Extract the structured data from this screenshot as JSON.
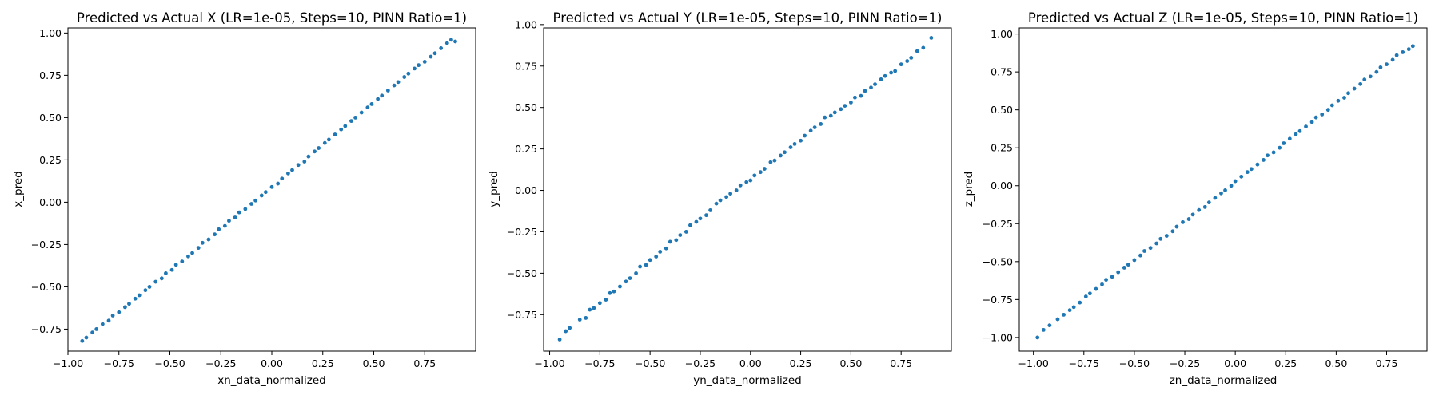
{
  "figure": {
    "background": "#ffffff",
    "point_color": "#1f77b4"
  },
  "chart_data": [
    {
      "type": "scatter",
      "title": "Predicted vs Actual X (LR=1e-05, Steps=10, PINN Ratio=1)",
      "xlabel": "xn_data_normalized",
      "ylabel": "x_pred",
      "xlim": [
        -1.0,
        1.0
      ],
      "ylim": [
        -0.88,
        1.03
      ],
      "xticks": [
        -1.0,
        -0.75,
        -0.5,
        -0.25,
        0.0,
        0.25,
        0.5,
        0.75
      ],
      "xtick_labels": [
        "−1.00",
        "−0.75",
        "−0.50",
        "−0.25",
        "0.00",
        "0.25",
        "0.50",
        "0.75"
      ],
      "yticks": [
        -0.75,
        -0.5,
        -0.25,
        0.0,
        0.25,
        0.5,
        0.75,
        1.0
      ],
      "ytick_labels": [
        "−0.75",
        "−0.50",
        "−0.25",
        "0.00",
        "0.25",
        "0.50",
        "0.75",
        "1.00"
      ],
      "grid": false,
      "color": "#1f77b4",
      "x": [
        -0.93,
        -0.91,
        -0.88,
        -0.86,
        -0.83,
        -0.8,
        -0.78,
        -0.75,
        -0.72,
        -0.7,
        -0.67,
        -0.65,
        -0.62,
        -0.6,
        -0.57,
        -0.54,
        -0.52,
        -0.49,
        -0.47,
        -0.44,
        -0.41,
        -0.39,
        -0.36,
        -0.34,
        -0.31,
        -0.28,
        -0.26,
        -0.23,
        -0.21,
        -0.18,
        -0.16,
        -0.13,
        -0.1,
        -0.08,
        -0.05,
        -0.03,
        0.0,
        0.03,
        0.05,
        0.08,
        0.1,
        0.13,
        0.16,
        0.18,
        0.21,
        0.23,
        0.26,
        0.28,
        0.31,
        0.34,
        0.36,
        0.39,
        0.41,
        0.44,
        0.47,
        0.49,
        0.52,
        0.54,
        0.57,
        0.6,
        0.62,
        0.65,
        0.67,
        0.7,
        0.72,
        0.75,
        0.78,
        0.8,
        0.83,
        0.86,
        0.88,
        0.9
      ],
      "y": [
        -0.82,
        -0.8,
        -0.77,
        -0.75,
        -0.72,
        -0.7,
        -0.67,
        -0.65,
        -0.62,
        -0.6,
        -0.57,
        -0.55,
        -0.52,
        -0.5,
        -0.47,
        -0.45,
        -0.42,
        -0.4,
        -0.37,
        -0.35,
        -0.32,
        -0.3,
        -0.27,
        -0.24,
        -0.22,
        -0.19,
        -0.16,
        -0.14,
        -0.11,
        -0.09,
        -0.06,
        -0.04,
        -0.01,
        0.01,
        0.04,
        0.06,
        0.09,
        0.11,
        0.14,
        0.17,
        0.19,
        0.22,
        0.24,
        0.27,
        0.3,
        0.32,
        0.35,
        0.37,
        0.4,
        0.43,
        0.45,
        0.48,
        0.5,
        0.53,
        0.56,
        0.58,
        0.61,
        0.63,
        0.66,
        0.69,
        0.71,
        0.74,
        0.76,
        0.79,
        0.81,
        0.83,
        0.86,
        0.88,
        0.91,
        0.94,
        0.96,
        0.95
      ]
    },
    {
      "type": "scatter",
      "title": "Predicted vs Actual Y (LR=1e-05, Steps=10, PINN Ratio=1)",
      "xlabel": "yn_data_normalized",
      "ylabel": "y_pred",
      "xlim": [
        -1.03,
        1.0
      ],
      "ylim": [
        -0.97,
        0.98
      ],
      "xticks": [
        -1.0,
        -0.75,
        -0.5,
        -0.25,
        0.0,
        0.25,
        0.5,
        0.75
      ],
      "xtick_labels": [
        "−1.00",
        "−0.75",
        "−0.50",
        "−0.25",
        "0.00",
        "0.25",
        "0.50",
        "0.75"
      ],
      "yticks": [
        -0.75,
        -0.5,
        -0.25,
        0.0,
        0.25,
        0.5,
        0.75,
        1.0
      ],
      "ytick_labels": [
        "−0.75",
        "−0.50",
        "−0.25",
        "0.00",
        "0.25",
        "0.50",
        "0.75",
        "1.00"
      ],
      "grid": false,
      "color": "#1f77b4",
      "x": [
        -0.95,
        -0.92,
        -0.9,
        -0.85,
        -0.82,
        -0.8,
        -0.78,
        -0.75,
        -0.72,
        -0.7,
        -0.68,
        -0.65,
        -0.62,
        -0.6,
        -0.57,
        -0.55,
        -0.52,
        -0.5,
        -0.47,
        -0.45,
        -0.42,
        -0.4,
        -0.37,
        -0.35,
        -0.32,
        -0.3,
        -0.27,
        -0.25,
        -0.22,
        -0.2,
        -0.17,
        -0.15,
        -0.12,
        -0.1,
        -0.07,
        -0.05,
        -0.02,
        0.0,
        0.02,
        0.05,
        0.07,
        0.1,
        0.12,
        0.15,
        0.17,
        0.2,
        0.22,
        0.25,
        0.27,
        0.3,
        0.32,
        0.35,
        0.37,
        0.4,
        0.42,
        0.45,
        0.47,
        0.5,
        0.52,
        0.55,
        0.57,
        0.6,
        0.62,
        0.65,
        0.67,
        0.7,
        0.72,
        0.75,
        0.78,
        0.8,
        0.83,
        0.86,
        0.9
      ],
      "y": [
        -0.9,
        -0.85,
        -0.83,
        -0.78,
        -0.77,
        -0.72,
        -0.71,
        -0.68,
        -0.66,
        -0.62,
        -0.61,
        -0.58,
        -0.55,
        -0.53,
        -0.5,
        -0.46,
        -0.45,
        -0.42,
        -0.4,
        -0.37,
        -0.35,
        -0.31,
        -0.3,
        -0.27,
        -0.25,
        -0.21,
        -0.19,
        -0.17,
        -0.15,
        -0.12,
        -0.08,
        -0.06,
        -0.04,
        -0.02,
        0.0,
        0.03,
        0.05,
        0.06,
        0.09,
        0.11,
        0.13,
        0.17,
        0.18,
        0.21,
        0.23,
        0.26,
        0.28,
        0.3,
        0.33,
        0.36,
        0.38,
        0.4,
        0.44,
        0.45,
        0.47,
        0.49,
        0.51,
        0.53,
        0.56,
        0.57,
        0.6,
        0.62,
        0.64,
        0.67,
        0.69,
        0.71,
        0.72,
        0.76,
        0.78,
        0.8,
        0.84,
        0.86,
        0.92
      ]
    },
    {
      "type": "scatter",
      "title": "Predicted vs Actual Z (LR=1e-05, Steps=10, PINN Ratio=1)",
      "xlabel": "zn_data_normalized",
      "ylabel": "z_pred",
      "xlim": [
        -1.07,
        0.95
      ],
      "ylim": [
        -1.09,
        1.04
      ],
      "xticks": [
        -1.0,
        -0.75,
        -0.5,
        -0.25,
        0.0,
        0.25,
        0.5,
        0.75
      ],
      "xtick_labels": [
        "−1.00",
        "−0.75",
        "−0.50",
        "−0.25",
        "0.00",
        "0.25",
        "0.50",
        "0.75"
      ],
      "yticks": [
        -1.0,
        -0.75,
        -0.5,
        -0.25,
        0.0,
        0.25,
        0.5,
        0.75,
        1.0
      ],
      "ytick_labels": [
        "−1.00",
        "−0.75",
        "−0.50",
        "−0.25",
        "0.00",
        "0.25",
        "0.50",
        "0.75",
        "1.00"
      ],
      "grid": false,
      "color": "#1f77b4",
      "x": [
        -0.98,
        -0.95,
        -0.92,
        -0.88,
        -0.85,
        -0.82,
        -0.8,
        -0.77,
        -0.74,
        -0.72,
        -0.69,
        -0.66,
        -0.64,
        -0.61,
        -0.58,
        -0.55,
        -0.53,
        -0.5,
        -0.47,
        -0.45,
        -0.42,
        -0.39,
        -0.37,
        -0.34,
        -0.31,
        -0.29,
        -0.26,
        -0.23,
        -0.21,
        -0.18,
        -0.15,
        -0.13,
        -0.1,
        -0.07,
        -0.05,
        -0.02,
        0.0,
        0.03,
        0.06,
        0.08,
        0.11,
        0.14,
        0.16,
        0.19,
        0.22,
        0.24,
        0.27,
        0.3,
        0.32,
        0.35,
        0.38,
        0.4,
        0.43,
        0.46,
        0.48,
        0.51,
        0.54,
        0.56,
        0.59,
        0.62,
        0.64,
        0.67,
        0.7,
        0.72,
        0.75,
        0.78,
        0.8,
        0.83,
        0.86,
        0.88
      ],
      "y": [
        -1.0,
        -0.95,
        -0.92,
        -0.88,
        -0.85,
        -0.82,
        -0.8,
        -0.77,
        -0.73,
        -0.71,
        -0.68,
        -0.65,
        -0.62,
        -0.6,
        -0.57,
        -0.54,
        -0.52,
        -0.49,
        -0.46,
        -0.43,
        -0.41,
        -0.38,
        -0.35,
        -0.33,
        -0.3,
        -0.27,
        -0.24,
        -0.22,
        -0.19,
        -0.16,
        -0.14,
        -0.11,
        -0.08,
        -0.05,
        -0.03,
        0.0,
        0.03,
        0.06,
        0.09,
        0.11,
        0.14,
        0.17,
        0.2,
        0.22,
        0.25,
        0.28,
        0.31,
        0.34,
        0.36,
        0.39,
        0.42,
        0.45,
        0.47,
        0.5,
        0.53,
        0.56,
        0.58,
        0.61,
        0.64,
        0.67,
        0.7,
        0.72,
        0.75,
        0.78,
        0.8,
        0.83,
        0.86,
        0.88,
        0.9,
        0.92
      ]
    }
  ]
}
